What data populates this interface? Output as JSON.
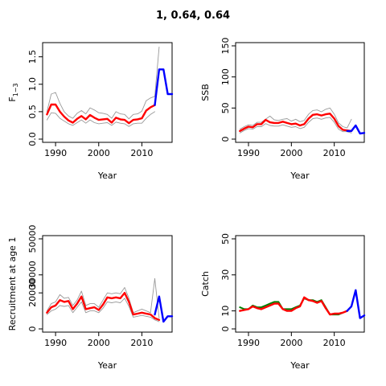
{
  "title": "1, 0.64, 0.64",
  "colors": {
    "median": "#ff0000",
    "projection": "#0000ff",
    "ci": "#999999",
    "observed": "#008000",
    "frame": "#000000"
  },
  "chart_data": [
    {
      "type": "line",
      "panel": "top-left",
      "ylabel": "F1−3",
      "xlabel": "Year",
      "xlim": [
        1987,
        2017
      ],
      "ylim": [
        0,
        1.7
      ],
      "x_ticks": [
        "1990",
        "2000",
        "2010"
      ],
      "y_ticks": [
        "0.0",
        "0.5",
        "1.0",
        "1.5"
      ],
      "years": [
        1988,
        1989,
        1990,
        1991,
        1992,
        1993,
        1994,
        1995,
        1996,
        1997,
        1998,
        1999,
        2000,
        2001,
        2002,
        2003,
        2004,
        2005,
        2006,
        2007,
        2008,
        2009,
        2010,
        2011,
        2012,
        2013
      ],
      "series": [
        {
          "role": "upper",
          "values": [
            0.5,
            0.82,
            0.85,
            0.65,
            0.5,
            0.42,
            0.38,
            0.47,
            0.52,
            0.46,
            0.57,
            0.53,
            0.48,
            0.47,
            0.45,
            0.38,
            0.5,
            0.46,
            0.45,
            0.37,
            0.45,
            0.46,
            0.51,
            0.7,
            0.75,
            0.78
          ]
        },
        {
          "role": "median",
          "values": [
            0.45,
            0.63,
            0.63,
            0.5,
            0.41,
            0.34,
            0.3,
            0.37,
            0.42,
            0.36,
            0.44,
            0.39,
            0.35,
            0.36,
            0.37,
            0.3,
            0.39,
            0.36,
            0.35,
            0.29,
            0.35,
            0.36,
            0.38,
            0.52,
            0.58,
            0.62
          ]
        },
        {
          "role": "lower",
          "values": [
            0.35,
            0.48,
            0.47,
            0.38,
            0.33,
            0.28,
            0.25,
            0.3,
            0.35,
            0.29,
            0.35,
            0.3,
            0.28,
            0.29,
            0.3,
            0.25,
            0.31,
            0.29,
            0.28,
            0.23,
            0.28,
            0.29,
            0.29,
            0.38,
            0.45,
            0.5
          ]
        }
      ],
      "extra_upper": {
        "x": [
          2013,
          2014
        ],
        "values": [
          0.78,
          1.68
        ]
      },
      "projection": {
        "x": [
          2013,
          2014,
          2015,
          2016,
          2017
        ],
        "values": [
          0.62,
          1.27,
          1.27,
          0.82,
          0.82
        ]
      }
    },
    {
      "type": "line",
      "panel": "top-right",
      "ylabel": "SSB",
      "xlabel": "Year",
      "xlim": [
        1987,
        2017
      ],
      "ylim": [
        0,
        150
      ],
      "x_ticks": [
        "1990",
        "2000",
        "2010"
      ],
      "y_ticks": [
        "0",
        "50",
        "100",
        "150"
      ],
      "years": [
        1988,
        1989,
        1990,
        1991,
        1992,
        1993,
        1994,
        1995,
        1996,
        1997,
        1998,
        1999,
        2000,
        2001,
        2002,
        2003,
        2004,
        2005,
        2006,
        2007,
        2008,
        2009,
        2010,
        2011,
        2012,
        2013,
        2014
      ],
      "series": [
        {
          "role": "upper",
          "values": [
            16,
            20,
            23,
            22,
            27,
            27,
            32,
            37,
            31,
            30,
            32,
            33,
            29,
            32,
            28,
            30,
            40,
            46,
            47,
            44,
            48,
            50,
            40,
            26,
            20,
            18,
            32
          ]
        },
        {
          "role": "median",
          "values": [
            13,
            17,
            20,
            19,
            24,
            24,
            31,
            27,
            26,
            26,
            28,
            26,
            24,
            25,
            22,
            24,
            33,
            39,
            40,
            38,
            40,
            41,
            33,
            21,
            15,
            14,
            13
          ]
        },
        {
          "role": "lower",
          "values": [
            10,
            14,
            17,
            16,
            20,
            20,
            25,
            22,
            21,
            21,
            23,
            21,
            19,
            20,
            17,
            19,
            27,
            33,
            34,
            32,
            34,
            35,
            27,
            16,
            12,
            12,
            10
          ]
        }
      ],
      "projection": {
        "x": [
          2013,
          2014,
          2015,
          2016,
          2017
        ],
        "values": [
          13,
          13,
          22,
          9,
          10
        ]
      }
    },
    {
      "type": "line",
      "panel": "bottom-left",
      "ylabel": "Recruitment at age 1",
      "xlabel": "Year",
      "xlim": [
        1987,
        2017
      ],
      "ylim": [
        0,
        50000
      ],
      "x_ticks": [
        "1990",
        "2000",
        "2010"
      ],
      "y_ticks": [
        "0",
        "20000",
        "30000",
        "50000"
      ],
      "years": [
        1988,
        1989,
        1990,
        1991,
        1992,
        1993,
        1994,
        1995,
        1996,
        1997,
        1998,
        1999,
        2000,
        2001,
        2002,
        2003,
        2004,
        2005,
        2006,
        2007,
        2008,
        2009,
        2010,
        2011,
        2012,
        2013,
        2014
      ],
      "series": [
        {
          "role": "upper",
          "values": [
            10000,
            14000,
            15000,
            19000,
            17000,
            17500,
            13000,
            16000,
            21000,
            13000,
            14000,
            14000,
            12000,
            16000,
            20000,
            19500,
            20000,
            19500,
            23000,
            17000,
            9000,
            10000,
            11000,
            10000,
            9000,
            28000,
            6000
          ]
        },
        {
          "role": "median",
          "values": [
            9000,
            12000,
            13000,
            16000,
            15000,
            15500,
            11000,
            14000,
            18000,
            11000,
            11500,
            12000,
            10500,
            13500,
            17500,
            17000,
            17500,
            17000,
            20000,
            15000,
            8000,
            8500,
            9000,
            8500,
            8000,
            6000,
            5000
          ]
        },
        {
          "role": "lower",
          "values": [
            8000,
            10000,
            11000,
            13000,
            12500,
            13000,
            9000,
            12000,
            15000,
            9000,
            10000,
            10000,
            9000,
            11500,
            15000,
            14500,
            15000,
            14500,
            17000,
            12500,
            6500,
            7000,
            7500,
            7000,
            6500,
            5000,
            4000
          ]
        }
      ],
      "projection": {
        "x": [
          2013,
          2014,
          2015,
          2016,
          2017
        ],
        "values": [
          8000,
          18000,
          4000,
          7000,
          7000
        ]
      }
    },
    {
      "type": "line",
      "panel": "bottom-right",
      "ylabel": "Catch",
      "xlabel": "Year",
      "xlim": [
        1987,
        2017
      ],
      "ylim": [
        0,
        50
      ],
      "x_ticks": [
        "1990",
        "2000",
        "2010"
      ],
      "y_ticks": [
        "0",
        "10",
        "30",
        "50"
      ],
      "years": [
        1988,
        1989,
        1990,
        1991,
        1992,
        1993,
        1994,
        1995,
        1996,
        1997,
        1998,
        1999,
        2000,
        2001,
        2002,
        2003,
        2004,
        2005,
        2006,
        2007,
        2008,
        2009,
        2010,
        2011,
        2012,
        2013
      ],
      "series": [
        {
          "role": "observed",
          "values": [
            12,
            11,
            11,
            13,
            12,
            12,
            13,
            14,
            15,
            15,
            11,
            11,
            11,
            12,
            13,
            17,
            16,
            16,
            15,
            16,
            12,
            8,
            8,
            8,
            9,
            10
          ]
        },
        {
          "role": "median",
          "values": [
            10,
            10.5,
            11,
            12.5,
            11.5,
            11,
            12,
            13,
            14,
            14,
            11,
            10,
            10,
            11.5,
            12.5,
            17.5,
            16,
            15.5,
            14.5,
            15.5,
            11.5,
            8,
            8.5,
            8.5,
            9,
            10
          ]
        }
      ],
      "projection": {
        "x": [
          2013,
          2014,
          2015,
          2016,
          2017
        ],
        "values": [
          10,
          12.5,
          21.5,
          6,
          7.5
        ]
      }
    }
  ]
}
